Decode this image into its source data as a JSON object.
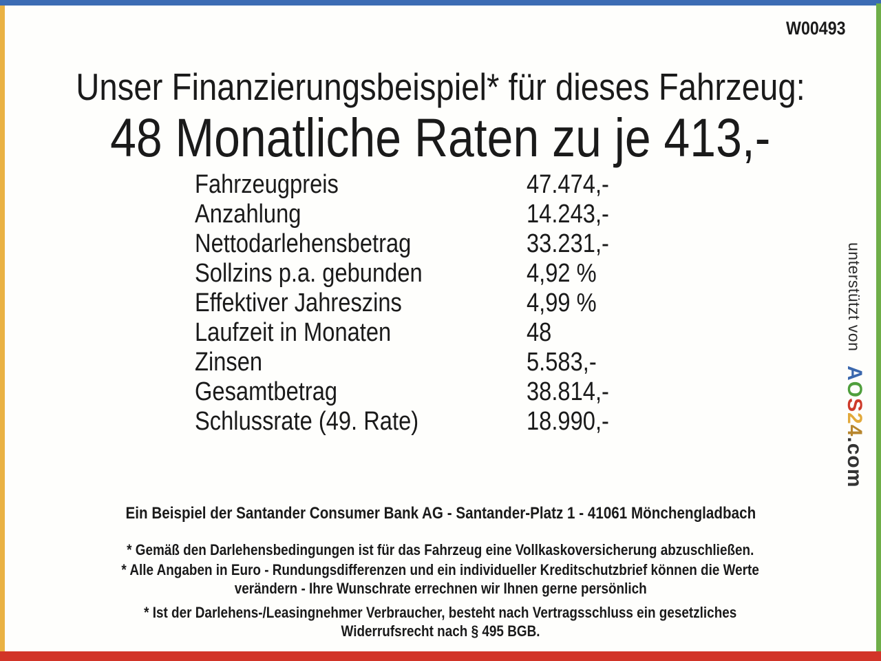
{
  "badge": {
    "vehicle_code": "W00493"
  },
  "header": {
    "line1": "Unser Finanzierungsbeispiel* für dieses Fahrzeug:",
    "line2": "48 Monatliche Raten zu je 413,-"
  },
  "table": {
    "rows": [
      {
        "label": "Fahrzeugpreis",
        "value": "47.474,-"
      },
      {
        "label": "Anzahlung",
        "value": "14.243,-"
      },
      {
        "label": "Nettodarlehensbetrag",
        "value": "33.231,-"
      },
      {
        "label": "Sollzins p.a. gebunden",
        "value": "4,92 %"
      },
      {
        "label": "Effektiver Jahreszins",
        "value": "4,99 %"
      },
      {
        "label": "Laufzeit in Monaten",
        "value": "48"
      },
      {
        "label": "Zinsen",
        "value": "5.583,-"
      },
      {
        "label": "Gesamtbetrag",
        "value": "38.814,-"
      },
      {
        "label": "Schlussrate (49. Rate)",
        "value": "18.990,-"
      }
    ]
  },
  "footer": {
    "bank_line": "Ein Beispiel der Santander Consumer Bank AG - Santander-Platz 1 - 41061 Mönchengladbach",
    "footnote1": {
      "line1": "* Gemäß den Darlehensbedingungen ist für das Fahrzeug eine Vollkaskoversicherung abzuschließen."
    },
    "footnote2": {
      "line1": "* Alle Angaben in Euro - Rundungsdifferenzen und ein individueller Kreditschutzbrief können die Werte",
      "line2": "verändern - Ihre Wunschrate errechnen wir Ihnen gerne persönlich"
    },
    "footnote3": {
      "line1": "* Ist der Darlehens-/Leasingnehmer Verbraucher, besteht nach Vertragsschluss ein gesetzliches",
      "line2": "Widerrufsrecht nach § 495 BGB."
    }
  },
  "supporter": {
    "prefix": "unterstützt von",
    "brand": {
      "l1": {
        "char": "A",
        "color": "#3a67ad"
      },
      "l2": {
        "char": "O",
        "color": "#4f9f3c"
      },
      "l3": {
        "char": "S",
        "color": "#ce3a2a"
      },
      "l4": {
        "char": "2",
        "color": "#e2a93b"
      },
      "l5": {
        "char": "4",
        "color": "#b7862e"
      },
      "suffix": {
        "char": ".com",
        "color": "#333333"
      }
    }
  },
  "colors": {
    "border_top_blue": "#3c6cb4",
    "border_left_yellow": "#eab244",
    "border_right_green": "#6fae49",
    "border_bottom_red": "#d23428"
  }
}
